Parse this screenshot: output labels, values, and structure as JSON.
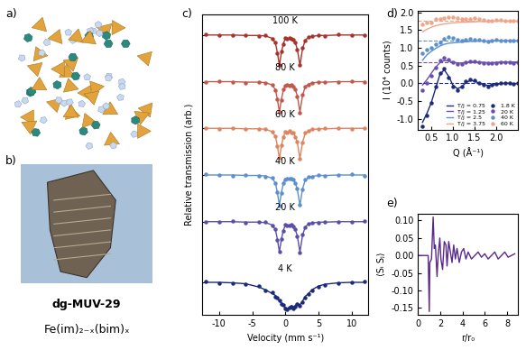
{
  "figure": {
    "panel_labels": [
      "a)",
      "b)",
      "c)",
      "d)",
      "e)"
    ],
    "material": {
      "name": "dg-MUV-29",
      "formula": "Fe(im)₂₋ₓ(bim)ₓ"
    }
  },
  "chart_data": [
    {
      "panel": "c)",
      "type": "line",
      "xlabel": "Velocity (mm s⁻¹)",
      "ylabel": "Relative transmission (arb.)",
      "xlim": [
        -12.5,
        12.5
      ],
      "ylim": [
        0.3,
        6.75
      ],
      "xticks": [
        -10,
        -5,
        0,
        5,
        10
      ],
      "yticks": [
        1.0,
        2.3,
        3.3,
        4.3,
        5.3,
        6.3
      ],
      "tick_labels": "x",
      "x": [
        -12,
        -10,
        -8,
        -6,
        -4,
        -3,
        -2,
        -1.5,
        -1.2,
        -0.9,
        -0.6,
        -0.3,
        0,
        0.3,
        0.6,
        0.9,
        1.2,
        1.5,
        1.8,
        2.2,
        2.6,
        3.0,
        3.5,
        4,
        5,
        6,
        8,
        10,
        12
      ],
      "series": [
        {
          "name": "100 K",
          "color": "#a8322d",
          "marker": "o",
          "values": [
            6.31,
            6.29,
            6.3,
            6.3,
            6.28,
            6.29,
            6.22,
            6.15,
            5.9,
            5.66,
            5.94,
            6.11,
            6.23,
            6.21,
            6.24,
            6.22,
            6.19,
            6.14,
            5.98,
            5.66,
            6.03,
            6.18,
            6.26,
            6.27,
            6.3,
            6.28,
            6.31,
            6.29,
            6.3
          ],
          "fit": [
            6.3,
            6.3,
            6.3,
            6.29,
            6.29,
            6.28,
            6.23,
            6.13,
            5.92,
            5.65,
            5.92,
            6.12,
            6.22,
            6.22,
            6.23,
            6.22,
            6.2,
            6.13,
            6.0,
            5.65,
            6.01,
            6.19,
            6.25,
            6.27,
            6.29,
            6.29,
            6.3,
            6.3,
            6.3
          ]
        },
        {
          "name": "80 K",
          "color": "#c2584c",
          "marker": "o",
          "values": [
            5.29,
            5.31,
            5.3,
            5.28,
            5.3,
            5.27,
            5.24,
            5.12,
            4.93,
            4.66,
            4.9,
            5.13,
            5.21,
            5.23,
            5.22,
            5.23,
            5.19,
            5.14,
            4.99,
            4.64,
            5.02,
            5.2,
            5.24,
            5.28,
            5.29,
            5.3,
            5.29,
            5.31,
            5.3
          ],
          "fit": [
            5.3,
            5.3,
            5.3,
            5.29,
            5.29,
            5.28,
            5.23,
            5.13,
            4.92,
            4.65,
            4.92,
            5.12,
            5.22,
            5.22,
            5.23,
            5.22,
            5.2,
            5.13,
            5.0,
            4.65,
            5.01,
            5.19,
            5.25,
            5.27,
            5.29,
            5.29,
            5.3,
            5.3,
            5.3
          ]
        },
        {
          "name": "60 K",
          "color": "#e0835f",
          "marker": "o",
          "values": [
            4.3,
            4.29,
            4.31,
            4.29,
            4.28,
            4.29,
            4.22,
            4.14,
            3.91,
            3.66,
            3.93,
            4.11,
            4.23,
            4.21,
            4.24,
            4.21,
            4.2,
            4.12,
            4.01,
            3.64,
            4.0,
            4.2,
            4.24,
            4.28,
            4.28,
            4.3,
            4.3,
            4.29,
            4.31
          ],
          "fit": [
            4.3,
            4.3,
            4.3,
            4.29,
            4.29,
            4.28,
            4.23,
            4.13,
            3.92,
            3.65,
            3.92,
            4.12,
            4.22,
            4.22,
            4.23,
            4.22,
            4.2,
            4.13,
            4.0,
            3.65,
            4.01,
            4.19,
            4.25,
            4.27,
            4.29,
            4.29,
            4.3,
            4.3,
            4.3
          ]
        },
        {
          "name": "40 K",
          "color": "#5b8fd0",
          "marker": "o",
          "values": [
            3.31,
            3.3,
            3.29,
            3.3,
            3.28,
            3.27,
            3.24,
            3.12,
            2.93,
            2.64,
            2.91,
            3.13,
            3.21,
            3.23,
            3.22,
            3.23,
            3.21,
            3.12,
            3.01,
            2.66,
            3.0,
            3.2,
            3.26,
            3.26,
            3.3,
            3.28,
            3.3,
            3.31,
            3.29
          ],
          "fit": [
            3.3,
            3.3,
            3.3,
            3.29,
            3.29,
            3.28,
            3.23,
            3.13,
            2.92,
            2.65,
            2.92,
            3.12,
            3.22,
            3.22,
            3.23,
            3.22,
            3.2,
            3.13,
            3.0,
            2.65,
            3.01,
            3.19,
            3.25,
            3.27,
            3.29,
            3.29,
            3.3,
            3.3,
            3.3
          ]
        },
        {
          "name": "20 K",
          "color": "#5a4fa8",
          "marker": "o",
          "values": [
            2.29,
            2.3,
            2.31,
            2.28,
            2.3,
            2.29,
            2.22,
            2.14,
            1.9,
            1.66,
            1.93,
            2.11,
            2.23,
            2.21,
            2.22,
            2.23,
            2.19,
            2.14,
            1.99,
            1.64,
            2.02,
            2.18,
            2.26,
            2.27,
            2.28,
            2.3,
            2.29,
            2.3,
            2.31
          ],
          "fit": [
            2.3,
            2.3,
            2.3,
            2.29,
            2.29,
            2.28,
            2.23,
            2.13,
            1.92,
            1.65,
            1.92,
            2.12,
            2.22,
            2.22,
            2.23,
            2.22,
            2.2,
            2.13,
            2.0,
            1.65,
            2.01,
            2.19,
            2.25,
            2.27,
            2.29,
            2.29,
            2.3,
            2.3,
            2.3
          ]
        },
        {
          "name": "4 K",
          "color": "#1b2a7a",
          "marker": "o",
          "values": [
            1.01,
            0.99,
            0.98,
            0.96,
            0.92,
            0.82,
            0.78,
            0.7,
            0.68,
            0.62,
            0.53,
            0.52,
            0.44,
            0.42,
            0.45,
            0.48,
            0.44,
            0.47,
            0.53,
            0.5,
            0.58,
            0.68,
            0.74,
            0.82,
            0.9,
            0.95,
            0.98,
            1.0,
            1.01
          ],
          "fit": [
            1.0,
            1.0,
            0.99,
            0.97,
            0.9,
            0.84,
            0.76,
            0.72,
            0.66,
            0.6,
            0.56,
            0.5,
            0.46,
            0.44,
            0.47,
            0.5,
            0.47,
            0.5,
            0.55,
            0.52,
            0.6,
            0.7,
            0.76,
            0.84,
            0.92,
            0.96,
            0.99,
            1.0,
            1.0
          ]
        }
      ]
    },
    {
      "panel": "d)",
      "type": "line",
      "xlabel": "Q (Å⁻¹)",
      "ylabel": "I (10⁴ counts)",
      "xlim": [
        0.2,
        2.5
      ],
      "ylim": [
        -1.3,
        2.05
      ],
      "xticks": [
        0.5,
        {
          "value": 1.0,
          "label": "1.0"
        },
        1.5,
        {
          "value": 2.0,
          "label": "2.0"
        }
      ],
      "yticks": [
        {
          "value": -1.0,
          "label": "-1.0"
        },
        {
          "value": -0.5,
          "label": "-0.5"
        },
        {
          "value": 0.0,
          "label": "0.0"
        },
        {
          "value": 0.5,
          "label": "0.5"
        },
        {
          "value": 1.0,
          "label": "1.0"
        },
        {
          "value": 1.5,
          "label": "1.5"
        },
        {
          "value": 2.0,
          "label": "2.0"
        }
      ],
      "legend": "lower right",
      "x": [
        0.3,
        0.4,
        0.5,
        0.6,
        0.7,
        0.8,
        0.9,
        1.0,
        1.1,
        1.2,
        1.3,
        1.4,
        1.5,
        1.6,
        1.7,
        1.8,
        1.9,
        2.0,
        2.1,
        2.2,
        2.3,
        2.4,
        2.5
      ],
      "series": [
        {
          "name": "T/J = 0.75",
          "type": "line",
          "color": "#1b2a7a",
          "values": [
            -1.1,
            -0.85,
            -0.55,
            -0.15,
            0.25,
            0.38,
            0.2,
            -0.05,
            -0.15,
            -0.1,
            0.02,
            0.08,
            0.06,
            0.01,
            -0.04,
            -0.06,
            -0.05,
            -0.03,
            -0.01,
            0.0,
            0.0,
            -0.01,
            0.0
          ]
        },
        {
          "name": "T/J = 1.25",
          "type": "line",
          "color": "#6a4fae",
          "values": [
            -0.05,
            0.1,
            0.28,
            0.45,
            0.58,
            0.64,
            0.63,
            0.6,
            0.57,
            0.57,
            0.59,
            0.61,
            0.61,
            0.6,
            0.59,
            0.58,
            0.58,
            0.59,
            0.6,
            0.6,
            0.6,
            0.6,
            0.6
          ]
        },
        {
          "name": "T/J = 2.5",
          "type": "line",
          "color": "#5b8fd0",
          "values": [
            0.65,
            0.8,
            0.9,
            0.98,
            1.05,
            1.1,
            1.13,
            1.14,
            1.15,
            1.16,
            1.17,
            1.18,
            1.18,
            1.19,
            1.19,
            1.19,
            1.2,
            1.2,
            1.2,
            1.2,
            1.2,
            1.2,
            1.2
          ]
        },
        {
          "name": "T/J = 3.75",
          "type": "line",
          "color": "#f0a58a",
          "values": [
            1.45,
            1.52,
            1.58,
            1.62,
            1.65,
            1.67,
            1.69,
            1.7,
            1.71,
            1.72,
            1.72,
            1.73,
            1.73,
            1.74,
            1.74,
            1.74,
            1.75,
            1.75,
            1.75,
            1.75,
            1.75,
            1.75,
            1.75
          ]
        },
        {
          "name": "1.8 K",
          "type": "scatter",
          "marker": "o",
          "color": "#1b2a7a",
          "baseline": 0.0,
          "values": [
            -1.2,
            -0.9,
            -0.55,
            -0.1,
            0.3,
            0.42,
            0.15,
            -0.1,
            -0.2,
            -0.1,
            0.05,
            0.1,
            0.08,
            0.0,
            -0.05,
            -0.08,
            -0.05,
            -0.02,
            0.0,
            0.02,
            0.0,
            -0.02,
            0.0
          ]
        },
        {
          "name": "20 K",
          "type": "scatter",
          "marker": "o",
          "color": "#6a4fae",
          "baseline": 0.6,
          "values": [
            -0.2,
            0.0,
            0.2,
            0.45,
            0.65,
            0.72,
            0.68,
            0.6,
            0.55,
            0.55,
            0.6,
            0.63,
            0.62,
            0.6,
            0.58,
            0.56,
            0.57,
            0.58,
            0.6,
            0.6,
            0.59,
            0.58,
            0.6
          ]
        },
        {
          "name": "40 K",
          "type": "scatter",
          "marker": "o",
          "color": "#5b8fd0",
          "baseline": 1.2,
          "values": [
            0.85,
            0.95,
            1.0,
            1.1,
            1.15,
            1.25,
            1.3,
            1.28,
            1.22,
            1.2,
            1.22,
            1.25,
            1.24,
            1.22,
            1.2,
            1.19,
            1.2,
            1.22,
            1.2,
            1.2,
            1.21,
            1.2,
            1.2
          ]
        },
        {
          "name": "60 K",
          "type": "scatter",
          "marker": "o",
          "color": "#f0a58a",
          "baseline": 1.75,
          "values": [
            1.65,
            1.7,
            1.72,
            1.8,
            1.82,
            1.85,
            1.87,
            1.86,
            1.83,
            1.8,
            1.8,
            1.82,
            1.83,
            1.8,
            1.78,
            1.76,
            1.77,
            1.79,
            1.78,
            1.76,
            1.75,
            1.76,
            1.75
          ]
        }
      ]
    },
    {
      "panel": "e)",
      "type": "line",
      "xlabel": "r/r₀",
      "ylabel": "⟨Sᵢ Sⱼ⟩",
      "xlim": [
        0,
        9
      ],
      "ylim": [
        -0.17,
        0.12
      ],
      "xticks": [
        0,
        2,
        4,
        6,
        8
      ],
      "yticks": [
        {
          "value": -0.15,
          "label": "-0.15"
        },
        {
          "value": -0.1,
          "label": "-0.10"
        },
        {
          "value": -0.05,
          "label": "-0.05"
        },
        {
          "value": 0.0,
          "label": "0.00"
        },
        {
          "value": 0.05,
          "label": "0.05"
        },
        {
          "value": 0.1,
          "label": "0.10"
        }
      ],
      "color": "#5a2a8a",
      "x": [
        0,
        0.9,
        1.0,
        1.05,
        1.2,
        1.35,
        1.45,
        1.55,
        1.7,
        1.8,
        1.95,
        2.05,
        2.2,
        2.35,
        2.5,
        2.6,
        2.75,
        2.9,
        3.05,
        3.2,
        3.35,
        3.5,
        3.7,
        3.9,
        4.1,
        4.3,
        4.5,
        4.8,
        5.1,
        5.4,
        5.7,
        6.0,
        6.3,
        6.6,
        6.9,
        7.2,
        7.5,
        7.8,
        8.1,
        8.4,
        8.7
      ],
      "values": [
        0,
        0,
        -0.16,
        -0.02,
        -0.01,
        0.11,
        0.02,
        0.03,
        -0.06,
        0.0,
        0.05,
        -0.01,
        -0.04,
        0.04,
        0.03,
        -0.03,
        0.04,
        0.01,
        -0.02,
        0.03,
        -0.01,
        0.02,
        -0.02,
        0.01,
        0.02,
        -0.01,
        0.01,
        -0.01,
        0.0,
        0.01,
        -0.005,
        0.005,
        -0.01,
        0.0,
        0.01,
        -0.01,
        0.0,
        0.01,
        -0.005,
        0.0,
        0.005
      ]
    }
  ]
}
